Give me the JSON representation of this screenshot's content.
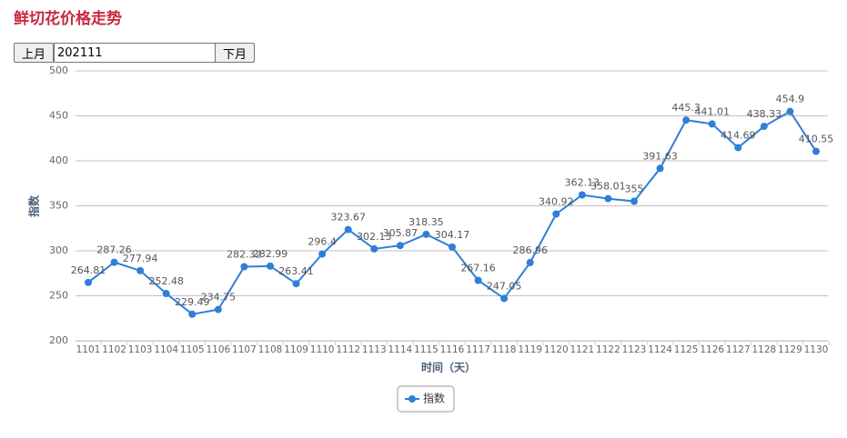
{
  "header": {
    "title": "鲜切花价格走势"
  },
  "controls": {
    "prev": "上月",
    "month": "202111",
    "next": "下月"
  },
  "chart_data": {
    "type": "line",
    "ylabel": "指数",
    "xlabel": "时间（天）",
    "categories": [
      "1101",
      "1102",
      "1103",
      "1104",
      "1105",
      "1106",
      "1107",
      "1108",
      "1109",
      "1110",
      "1112",
      "1113",
      "1114",
      "1115",
      "1116",
      "1117",
      "1118",
      "1119",
      "1120",
      "1121",
      "1122",
      "1123",
      "1124",
      "1125",
      "1126",
      "1127",
      "1128",
      "1129",
      "1130"
    ],
    "series": [
      {
        "name": "指数",
        "color": "#2f7ed8",
        "values": [
          264.81,
          287.26,
          277.94,
          252.48,
          229.49,
          234.75,
          282.32,
          282.99,
          263.41,
          296.4,
          323.67,
          302.13,
          305.87,
          318.35,
          304.17,
          267.16,
          247.05,
          286.96,
          340.92,
          362.13,
          358.01,
          355,
          391.63,
          445.3,
          441.01,
          414.69,
          438.33,
          454.9,
          410.55
        ]
      }
    ],
    "ylim": [
      200,
      500
    ],
    "yticks": [
      200,
      250,
      300,
      350,
      400,
      450,
      500
    ],
    "grid": true,
    "legend": "bottom"
  }
}
